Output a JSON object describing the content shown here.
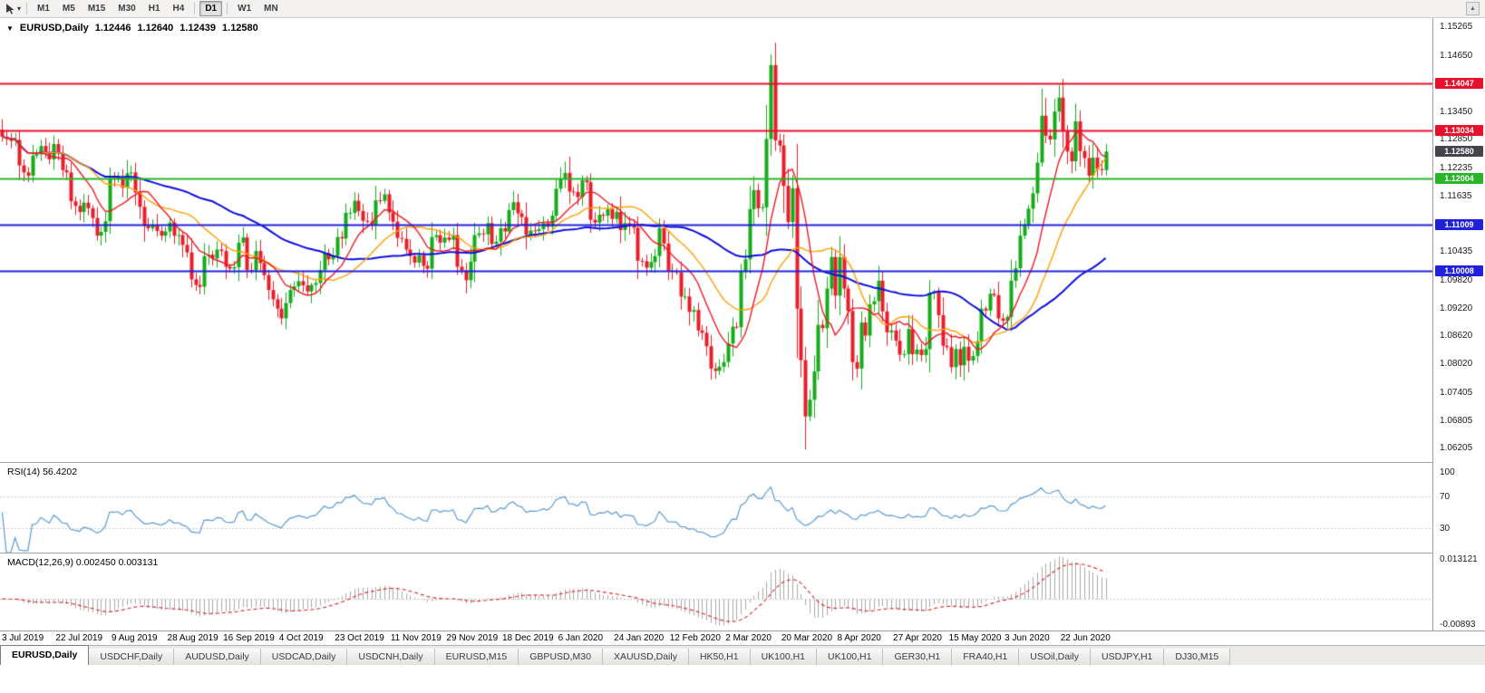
{
  "toolbar": {
    "timeframes": [
      "M1",
      "M5",
      "M15",
      "M30",
      "H1",
      "H4",
      "D1",
      "W1",
      "MN"
    ],
    "active": "D1",
    "scroll_up_glyph": "▲",
    "tool_caret": "▾"
  },
  "header": {
    "menu_glyph": "▼",
    "symbol": "EURUSD,Daily",
    "open": "1.12446",
    "high": "1.12640",
    "low": "1.12439",
    "close": "1.12580"
  },
  "tabs": {
    "items": [
      {
        "label": "EURUSD,Daily",
        "active": true
      },
      {
        "label": "USDCHF,Daily",
        "active": false
      },
      {
        "label": "AUDUSD,Daily",
        "active": false
      },
      {
        "label": "USDCAD,Daily",
        "active": false
      },
      {
        "label": "USDCNH,Daily",
        "active": false
      },
      {
        "label": "EURUSD,M15",
        "active": false
      },
      {
        "label": "GBPUSD,M30",
        "active": false
      },
      {
        "label": "XAUUSD,Daily",
        "active": false
      },
      {
        "label": "HK50,H1",
        "active": false
      },
      {
        "label": "UK100,H1",
        "active": false
      },
      {
        "label": "UK100,H1",
        "active": false
      },
      {
        "label": "GER30,H1",
        "active": false
      },
      {
        "label": "FRA40,H1",
        "active": false
      },
      {
        "label": "USOil,Daily",
        "active": false
      },
      {
        "label": "USDJPY,H1",
        "active": false
      },
      {
        "label": "DJ30,M15",
        "active": false
      }
    ]
  },
  "chart_data": {
    "type": "candlestick",
    "title": "EURUSD,Daily",
    "current_ohlc": {
      "open": 1.12446,
      "high": 1.1264,
      "low": 1.12439,
      "close": 1.1258
    },
    "y_range": [
      1.059,
      1.1545
    ],
    "candle_colors": {
      "up": "#15ac1b",
      "down": "#e81e2a"
    },
    "closes": [
      1.129,
      1.1285,
      1.1281,
      1.1283,
      1.1228,
      1.1213,
      1.1206,
      1.1249,
      1.1252,
      1.127,
      1.1257,
      1.1241,
      1.1274,
      1.1254,
      1.1218,
      1.1213,
      1.1151,
      1.1141,
      1.1128,
      1.1148,
      1.1136,
      1.1115,
      1.1077,
      1.1085,
      1.1108,
      1.1201,
      1.12,
      1.1203,
      1.118,
      1.1211,
      1.1213,
      1.117,
      1.1139,
      1.1098,
      1.1093,
      1.11,
      1.1087,
      1.1077,
      1.1086,
      1.1105,
      1.1077,
      1.1078,
      1.1057,
      1.1041,
      1.0983,
      1.0971,
      1.0967,
      1.1033,
      1.1036,
      1.1028,
      1.1047,
      1.1044,
      1.101,
      1.1006,
      1.1009,
      1.1062,
      1.1073,
      1.1003,
      1.1002,
      1.1044,
      1.1018,
      1.0992,
      1.096,
      1.094,
      1.092,
      1.0899,
      1.0932,
      1.096,
      1.0968,
      1.0979,
      1.097,
      1.0957,
      1.0971,
      1.0975,
      1.1003,
      1.104,
      1.1026,
      1.1034,
      1.1074,
      1.1071,
      1.1126,
      1.1126,
      1.1152,
      1.113,
      1.1109,
      1.1107,
      1.1101,
      1.1153,
      1.1152,
      1.1166,
      1.1127,
      1.1107,
      1.1072,
      1.107,
      1.1047,
      1.1033,
      1.1019,
      1.1035,
      1.1012,
      1.1006,
      1.1074,
      1.1078,
      1.1062,
      1.1073,
      1.1068,
      1.1078,
      1.101,
      1.1002,
      1.0981,
      1.1021,
      1.1078,
      1.1082,
      1.108,
      1.1104,
      1.1059,
      1.1064,
      1.1093,
      1.1086,
      1.1132,
      1.1149,
      1.1125,
      1.1117,
      1.1079,
      1.1088,
      1.1087,
      1.1091,
      1.1104,
      1.1096,
      1.112,
      1.1178,
      1.1199,
      1.1212,
      1.1172,
      1.1171,
      1.116,
      1.1196,
      1.1192,
      1.1111,
      1.1105,
      1.1122,
      1.112,
      1.1134,
      1.1113,
      1.1128,
      1.1089,
      1.1104,
      1.11,
      1.1094,
      1.1023,
      1.1022,
      1.1008,
      1.102,
      1.1033,
      1.1093,
      1.106,
      1.1002,
      1.1001,
      1.0998,
      1.0946,
      1.0946,
      1.0913,
      1.0917,
      1.0873,
      1.0868,
      1.0839,
      1.0791,
      1.0786,
      1.0795,
      1.0805,
      1.0845,
      1.0881,
      1.088,
      1.0999,
      1.1026,
      1.1134,
      1.1175,
      1.1136,
      1.1138,
      1.1285,
      1.1444,
      1.1282,
      1.1271,
      1.1184,
      1.1106,
      1.1179,
      1.092,
      1.0809,
      1.0688,
      1.0724,
      1.0785,
      1.0885,
      1.0878,
      1.0963,
      1.1031,
      1.0948,
      1.1031,
      1.0963,
      1.0915,
      1.0805,
      1.0791,
      1.089,
      1.0862,
      1.0929,
      1.0936,
      1.098,
      1.0914,
      1.0869,
      1.0873,
      1.0851,
      1.0821,
      1.0822,
      1.0876,
      1.0822,
      1.0832,
      1.082,
      1.0833,
      1.0954,
      1.0955,
      1.0906,
      1.084,
      1.0837,
      1.0794,
      1.0833,
      1.0798,
      1.0838,
      1.0808,
      1.0818,
      1.085,
      1.092,
      1.0916,
      1.0952,
      1.0949,
      1.0899,
      1.0894,
      1.0902,
      1.098,
      1.1007,
      1.1077,
      1.1101,
      1.1135,
      1.1168,
      1.1234,
      1.1335,
      1.1292,
      1.1284,
      1.1344,
      1.1374,
      1.1301,
      1.1258,
      1.1237,
      1.1323,
      1.1259,
      1.1244,
      1.1206,
      1.1245,
      1.122,
      1.1218,
      1.1258
    ],
    "moving_averages": [
      {
        "period": 50,
        "color": "#0d0de0",
        "width": 2
      },
      {
        "period": 21,
        "color": "#ff9e00",
        "width": 1.4
      },
      {
        "period": 10,
        "color": "#f01822",
        "width": 1.4
      }
    ],
    "price_ticks": [
      {
        "label": "1.15265",
        "value": 1.15265
      },
      {
        "label": "1.14650",
        "value": 1.1465
      },
      {
        "label": "1.13450",
        "value": 1.1345
      },
      {
        "label": "1.12850",
        "value": 1.1285
      },
      {
        "label": "1.12235",
        "value": 1.12235
      },
      {
        "label": "1.11635",
        "value": 1.11635
      },
      {
        "label": "1.10435",
        "value": 1.10435
      },
      {
        "label": "1.09820",
        "value": 1.0982
      },
      {
        "label": "1.09220",
        "value": 1.0922
      },
      {
        "label": "1.08620",
        "value": 1.0862
      },
      {
        "label": "1.08020",
        "value": 1.0802
      },
      {
        "label": "1.07405",
        "value": 1.07405
      },
      {
        "label": "1.06805",
        "value": 1.06805
      },
      {
        "label": "1.06205",
        "value": 1.06205
      }
    ],
    "price_markers": [
      {
        "label": "1.14047",
        "value": 1.14047,
        "color": "#e8112d",
        "kind": "resistance-line"
      },
      {
        "label": "1.13034",
        "value": 1.13034,
        "color": "#e8112d",
        "kind": "resistance-line"
      },
      {
        "label": "1.12580",
        "value": 1.1258,
        "color": "#44444d",
        "kind": "current-price"
      },
      {
        "label": "1.12004",
        "value": 1.12004,
        "color": "#28b428",
        "kind": "support-line"
      },
      {
        "label": "1.11009",
        "value": 1.11009,
        "color": "#2121dd",
        "kind": "support-line"
      },
      {
        "label": "1.10008",
        "value": 1.10008,
        "color": "#2121dd",
        "kind": "support-line"
      }
    ],
    "x_labels": [
      "3 Jul 2019",
      "22 Jul 2019",
      "9 Aug 2019",
      "28 Aug 2019",
      "16 Sep 2019",
      "4 Oct 2019",
      "23 Oct 2019",
      "11 Nov 2019",
      "29 Nov 2019",
      "18 Dec 2019",
      "6 Jan 2020",
      "24 Jan 2020",
      "12 Feb 2020",
      "2 Mar 2020",
      "20 Mar 2020",
      "8 Apr 2020",
      "27 Apr 2020",
      "15 May 2020",
      "3 Jun 2020",
      "22 Jun 2020"
    ],
    "x_label_start_index": 2,
    "x_label_step": 13,
    "rsi": {
      "label": "RSI(14) 56.4202",
      "period": 14,
      "current": 56.4202,
      "line_color": "#5a9bd5",
      "scale_max": 112,
      "levels": [
        {
          "label": "100",
          "value": 100
        },
        {
          "label": "70",
          "value": 70
        },
        {
          "label": "30",
          "value": 30
        }
      ]
    },
    "macd": {
      "label": "MACD(12,26,9) 0.002450 0.003131",
      "fast": 12,
      "slow": 26,
      "signal": 9,
      "current_macd": 0.00245,
      "current_signal": 0.003131,
      "histogram_color": "#a8a8a8",
      "signal_color": "#e03030",
      "scale": {
        "top": {
          "label": "0.013121",
          "value": 0.013121
        },
        "bottom": {
          "label": "-0.00893",
          "value": -0.008933
        }
      }
    }
  }
}
